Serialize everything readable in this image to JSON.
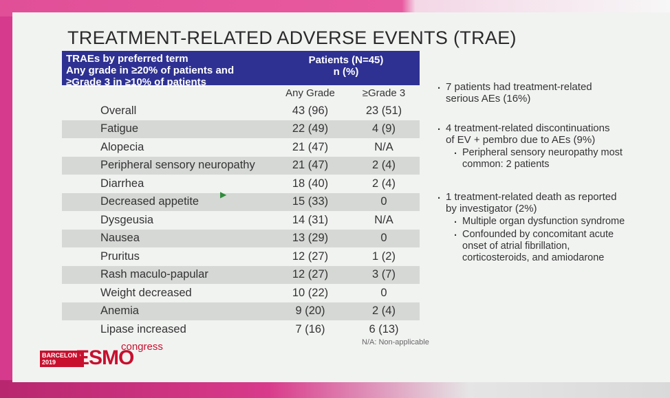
{
  "title": "TREATMENT-RELATED ADVERSE EVENTS (TRAE)",
  "table": {
    "header_left": [
      "TRAEs by preferred term",
      "Any grade in ≥20% of patients and",
      "≥Grade 3 in ≥10% of patients"
    ],
    "header_right": [
      "Patients (N=45)",
      "n (%)"
    ],
    "col_any": "Any Grade",
    "col_g3": "≥Grade 3",
    "rows": [
      {
        "term": "Overall",
        "any": "43 (96)",
        "g3": "23 (51)"
      },
      {
        "term": "Fatigue",
        "any": "22 (49)",
        "g3": "4 (9)"
      },
      {
        "term": "Alopecia",
        "any": "21 (47)",
        "g3": "N/A"
      },
      {
        "term": "Peripheral sensory neuropathy",
        "any": "21 (47)",
        "g3": "2 (4)"
      },
      {
        "term": "Diarrhea",
        "any": "18 (40)",
        "g3": "2 (4)"
      },
      {
        "term": "Decreased appetite",
        "any": "15 (33)",
        "g3": "0"
      },
      {
        "term": "Dysgeusia",
        "any": "14 (31)",
        "g3": "N/A"
      },
      {
        "term": "Nausea",
        "any": "13 (29)",
        "g3": "0"
      },
      {
        "term": "Pruritus",
        "any": "12 (27)",
        "g3": "1 (2)"
      },
      {
        "term": "Rash maculo-papular",
        "any": "12 (27)",
        "g3": "3 (7)"
      },
      {
        "term": "Weight decreased",
        "any": "10 (22)",
        "g3": "0"
      },
      {
        "term": "Anemia",
        "any": "9 (20)",
        "g3": "2 (4)"
      },
      {
        "term": "Lipase increased",
        "any": "7 (16)",
        "g3": "6 (13)"
      }
    ],
    "footnote": "N/A: Non-applicable"
  },
  "bullets": [
    {
      "text": [
        "7 patients had treatment-related",
        "serious AEs (16%)"
      ],
      "subs": []
    },
    {
      "text": [
        "4 treatment-related discontinuations",
        "of EV + pembro due to AEs (9%)"
      ],
      "subs": [
        [
          "Peripheral sensory neuropathy most",
          "common: 2 patients"
        ]
      ]
    },
    {
      "text": [
        "1 treatment-related death as reported",
        "by investigator (2%)"
      ],
      "subs": [
        [
          "Multiple organ dysfunction syndrome"
        ],
        [
          "Confounded by concomitant acute",
          "onset of atrial fibrillation,",
          "corticosteroids, and amiodarone"
        ]
      ]
    }
  ],
  "logo": {
    "city": "BARCELONA",
    "year": "2019",
    "brand": "ESMO",
    "suffix": "congress"
  },
  "colors": {
    "header_bg": "#2e3192",
    "accent": "#c8102e",
    "row_shade": "#d5d8d5"
  }
}
